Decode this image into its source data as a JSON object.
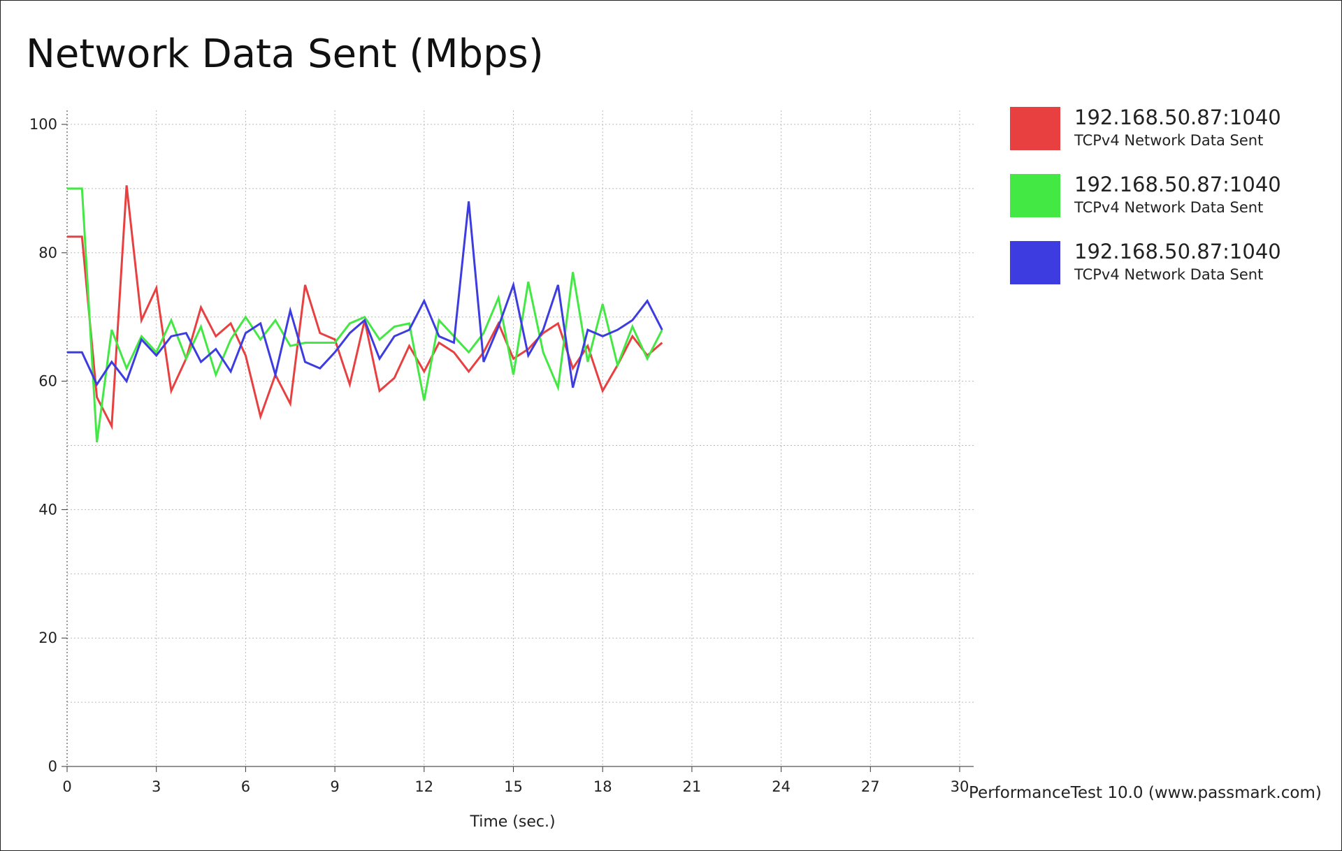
{
  "chart_data": {
    "type": "line",
    "title": "Network Data Sent (Mbps)",
    "xlabel": "Time (sec.)",
    "ylabel": "",
    "xlim": [
      0,
      30
    ],
    "ylim": [
      0,
      100
    ],
    "x_ticks": [
      "0",
      "3",
      "6",
      "9",
      "12",
      "15",
      "18",
      "21",
      "24",
      "27",
      "30"
    ],
    "y_ticks": [
      "0",
      "20",
      "40",
      "60",
      "80",
      "100"
    ],
    "grid": true,
    "legend_position": "right",
    "series": [
      {
        "name": "192.168.50.87:1040",
        "description": "TCPv4 Network Data Sent",
        "color": "#e84040",
        "x": [
          0,
          0.5,
          1,
          1.5,
          2,
          2.5,
          3,
          3.5,
          4,
          4.5,
          5,
          5.5,
          6,
          6.5,
          7,
          7.5,
          8,
          8.5,
          9,
          9.5,
          10,
          10.5,
          11,
          11.5,
          12,
          12.5,
          13,
          13.5,
          14,
          14.5,
          15,
          15.5,
          16,
          16.5,
          17,
          17.5,
          18,
          18.5,
          19,
          19.5,
          20
        ],
        "values": [
          82.5,
          82.5,
          57.5,
          53,
          90.5,
          69.5,
          74.5,
          58.5,
          63.5,
          71.5,
          67,
          69,
          64,
          54.5,
          61,
          56.5,
          75,
          67.5,
          66.5,
          59.5,
          69.5,
          58.5,
          60.5,
          65.5,
          61.5,
          66,
          64.5,
          61.5,
          64.5,
          69,
          63.5,
          65,
          67.5,
          69,
          62,
          65.5,
          58.5,
          62.5,
          67,
          64,
          66
        ]
      },
      {
        "name": "192.168.50.87:1040",
        "description": "TCPv4 Network Data Sent",
        "color": "#44e844",
        "x": [
          0,
          0.5,
          1,
          1.5,
          2,
          2.5,
          3,
          3.5,
          4,
          4.5,
          5,
          5.5,
          6,
          6.5,
          7,
          7.5,
          8,
          8.5,
          9,
          9.5,
          10,
          10.5,
          11,
          11.5,
          12,
          12.5,
          13,
          13.5,
          14,
          14.5,
          15,
          15.5,
          16,
          16.5,
          17,
          17.5,
          18,
          18.5,
          19,
          19.5,
          20
        ],
        "values": [
          90,
          90,
          50.5,
          68,
          62,
          67,
          64.5,
          69.5,
          63.5,
          68.5,
          61,
          66.5,
          70,
          66.5,
          69.5,
          65.5,
          66,
          66,
          66,
          69,
          70,
          66.5,
          68.5,
          69,
          57,
          69.5,
          67,
          64.5,
          67.5,
          73,
          61,
          75.5,
          64.5,
          59,
          77,
          63,
          72,
          62.5,
          68.5,
          63.5,
          68
        ]
      },
      {
        "name": "192.168.50.87:1040",
        "description": "TCPv4 Network Data Sent",
        "color": "#3c3ce0",
        "x": [
          0,
          0.5,
          1,
          1.5,
          2,
          2.5,
          3,
          3.5,
          4,
          4.5,
          5,
          5.5,
          6,
          6.5,
          7,
          7.5,
          8,
          8.5,
          9,
          9.5,
          10,
          10.5,
          11,
          11.5,
          12,
          12.5,
          13,
          13.5,
          14,
          14.5,
          15,
          15.5,
          16,
          16.5,
          17,
          17.5,
          18,
          18.5,
          19,
          19.5,
          20
        ],
        "values": [
          64.5,
          64.5,
          59.5,
          63,
          60,
          66.5,
          64,
          67,
          67.5,
          63,
          65,
          61.5,
          67.5,
          69,
          61,
          71,
          63,
          62,
          64.5,
          67.5,
          69.5,
          63.5,
          67,
          68,
          72.5,
          67,
          66,
          88,
          63,
          68.5,
          75,
          64,
          68,
          75,
          59,
          68,
          67,
          68,
          69.5,
          72.5,
          68
        ]
      }
    ]
  },
  "watermark": "PerformanceTest 10.0 (www.passmark.com)"
}
